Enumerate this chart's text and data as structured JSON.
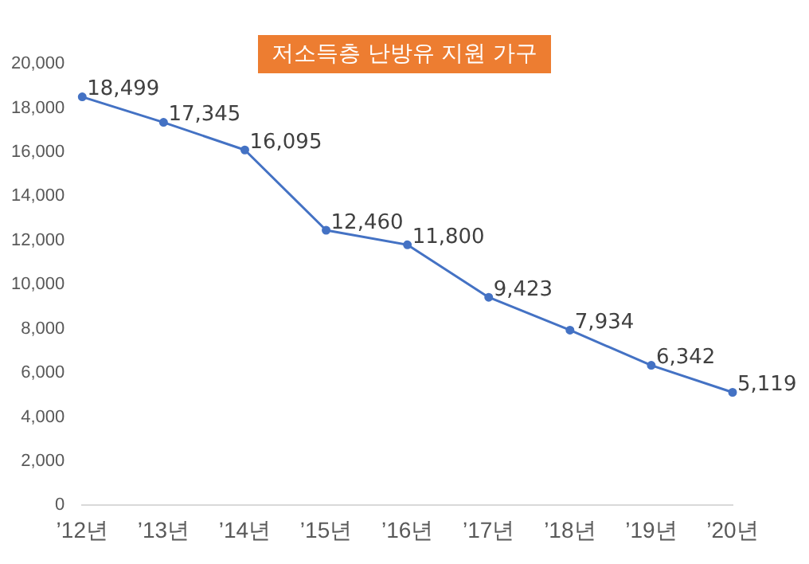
{
  "chart_data": {
    "type": "line",
    "title": "저소득층 난방유 지원 가구",
    "categories": [
      "’12년",
      "’13년",
      "’14년",
      "’15년",
      "’16년",
      "’17년",
      "’18년",
      "’19년",
      "’20년"
    ],
    "values": [
      18499,
      17345,
      16095,
      12460,
      11800,
      9423,
      7934,
      6342,
      5119
    ],
    "value_labels": [
      "18,499",
      "17,345",
      "16,095",
      "12,460",
      "11,800",
      "9,423",
      "7,934",
      "6,342",
      "5,119"
    ],
    "color": "#4472c4",
    "marker": "circle",
    "line_style": "solid",
    "ylim": [
      0,
      20000
    ],
    "yticks": [
      {
        "value": 0,
        "label": "0"
      },
      {
        "value": 2000,
        "label": "2,000"
      },
      {
        "value": 4000,
        "label": "4,000"
      },
      {
        "value": 6000,
        "label": "6,000"
      },
      {
        "value": 8000,
        "label": "8,000"
      },
      {
        "value": 10000,
        "label": "10,000"
      },
      {
        "value": 12000,
        "label": "12,000"
      },
      {
        "value": 14000,
        "label": "14,000"
      },
      {
        "value": 16000,
        "label": "16,000"
      },
      {
        "value": 18000,
        "label": "18,000"
      },
      {
        "value": 20000,
        "label": "20,000"
      }
    ],
    "grid": false,
    "legend": false
  }
}
